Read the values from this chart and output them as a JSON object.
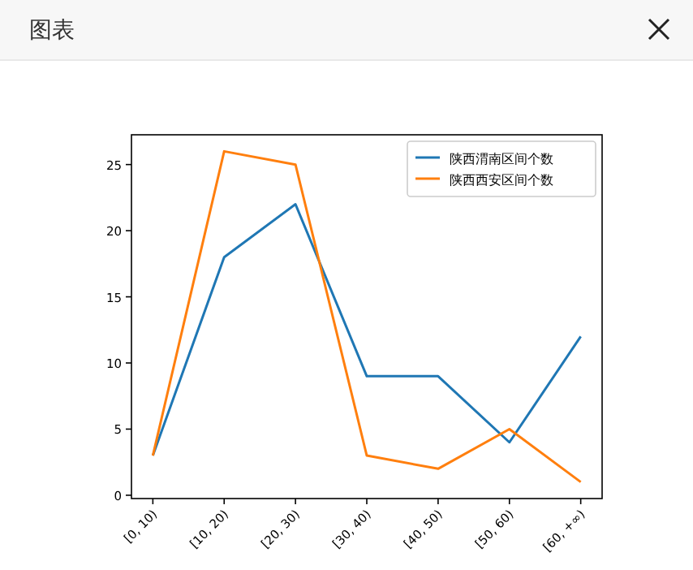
{
  "chart_data": {
    "type": "line",
    "title": "图表",
    "categories": [
      "[0, 10)",
      "[10, 20)",
      "[20, 30)",
      "[30, 40)",
      "[40, 50)",
      "[50, 60)",
      "[60, +∞)"
    ],
    "series": [
      {
        "name": "陕西渭南区间个数",
        "color": "#1f77b4",
        "values": [
          3,
          18,
          22,
          9,
          9,
          4,
          12
        ]
      },
      {
        "name": "陕西西安区间个数",
        "color": "#ff7f0e",
        "values": [
          3,
          26,
          25,
          3,
          2,
          5,
          1
        ]
      }
    ],
    "ylim": [
      -0.25,
      27.25
    ],
    "yticks": [
      0,
      5,
      10,
      15,
      20,
      25
    ],
    "legend": "top right"
  }
}
